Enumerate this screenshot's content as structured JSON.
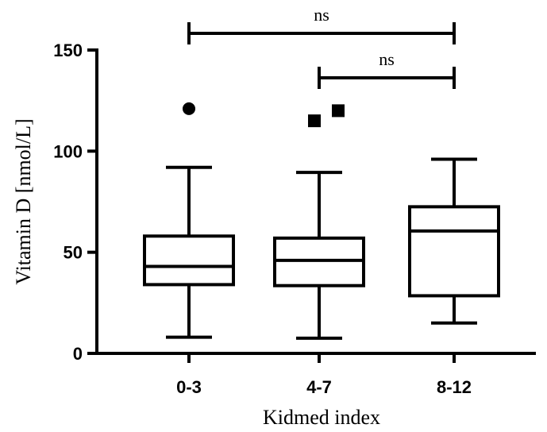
{
  "chart_data": {
    "type": "box",
    "xlabel": "Kidmed index",
    "ylabel": "Vitamin D [nmol/L]",
    "ylim": [
      0,
      150
    ],
    "yticks": [
      0,
      50,
      100,
      150
    ],
    "categories": [
      "0-3",
      "4-7",
      "8-12"
    ],
    "boxes": [
      {
        "category": "0-3",
        "whisker_low": 8,
        "q1": 34,
        "median": 43,
        "q3": 58,
        "whisker_high": 92,
        "outliers": [
          121
        ],
        "outlier_marker": "circle"
      },
      {
        "category": "4-7",
        "whisker_low": 7.5,
        "q1": 33.5,
        "median": 46,
        "q3": 57,
        "whisker_high": 89.5,
        "outliers": [
          115,
          120
        ],
        "outlier_marker": "square"
      },
      {
        "category": "8-12",
        "whisker_low": 15,
        "q1": 28.5,
        "median": 60.5,
        "q3": 72.5,
        "whisker_high": 96,
        "outliers": [],
        "outlier_marker": "triangle"
      }
    ],
    "comparisons": [
      {
        "from": "0-3",
        "to": "8-12",
        "label": "ns"
      },
      {
        "from": "4-7",
        "to": "8-12",
        "label": "ns"
      }
    ],
    "grid": false,
    "legend": "none"
  }
}
